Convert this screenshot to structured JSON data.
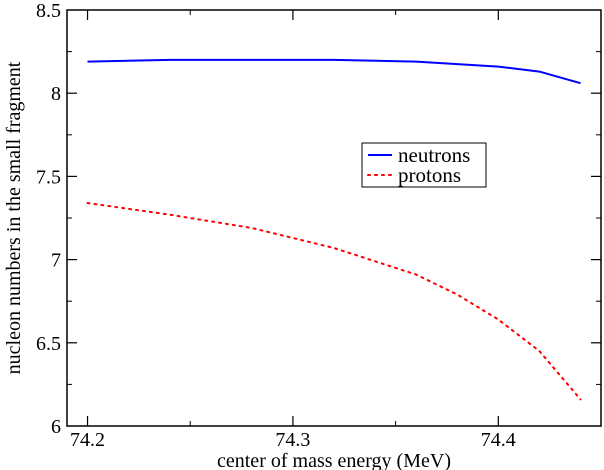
{
  "chart_data": {
    "type": "line",
    "title": "",
    "xlabel": "center of mass energy (MeV)",
    "ylabel": "nucleon numbers in the small fragment",
    "xlim": [
      74.19,
      74.45
    ],
    "ylim": [
      6,
      8.5
    ],
    "x_ticks": [
      74.2,
      74.3,
      74.4
    ],
    "x_tick_labels": [
      "74.2",
      "74.3",
      "74.4"
    ],
    "y_ticks": [
      6,
      6.5,
      7,
      7.5,
      8,
      8.5
    ],
    "y_tick_labels": [
      "6",
      "6.5",
      "7",
      "7.5",
      "8",
      "8.5"
    ],
    "grid": false,
    "legend_position": "center-right",
    "series": [
      {
        "name": "neutrons",
        "color": "#0000ff",
        "style": "solid",
        "x": [
          74.2,
          74.24,
          74.28,
          74.32,
          74.36,
          74.4,
          74.42,
          74.44
        ],
        "y": [
          8.19,
          8.2,
          8.2,
          8.2,
          8.19,
          8.16,
          8.13,
          8.06
        ]
      },
      {
        "name": "protons",
        "color": "#ff0000",
        "style": "dotted",
        "x": [
          74.2,
          74.24,
          74.28,
          74.32,
          74.36,
          74.38,
          74.4,
          74.42,
          74.44
        ],
        "y": [
          7.34,
          7.27,
          7.19,
          7.07,
          6.91,
          6.79,
          6.64,
          6.45,
          6.16
        ]
      }
    ]
  }
}
